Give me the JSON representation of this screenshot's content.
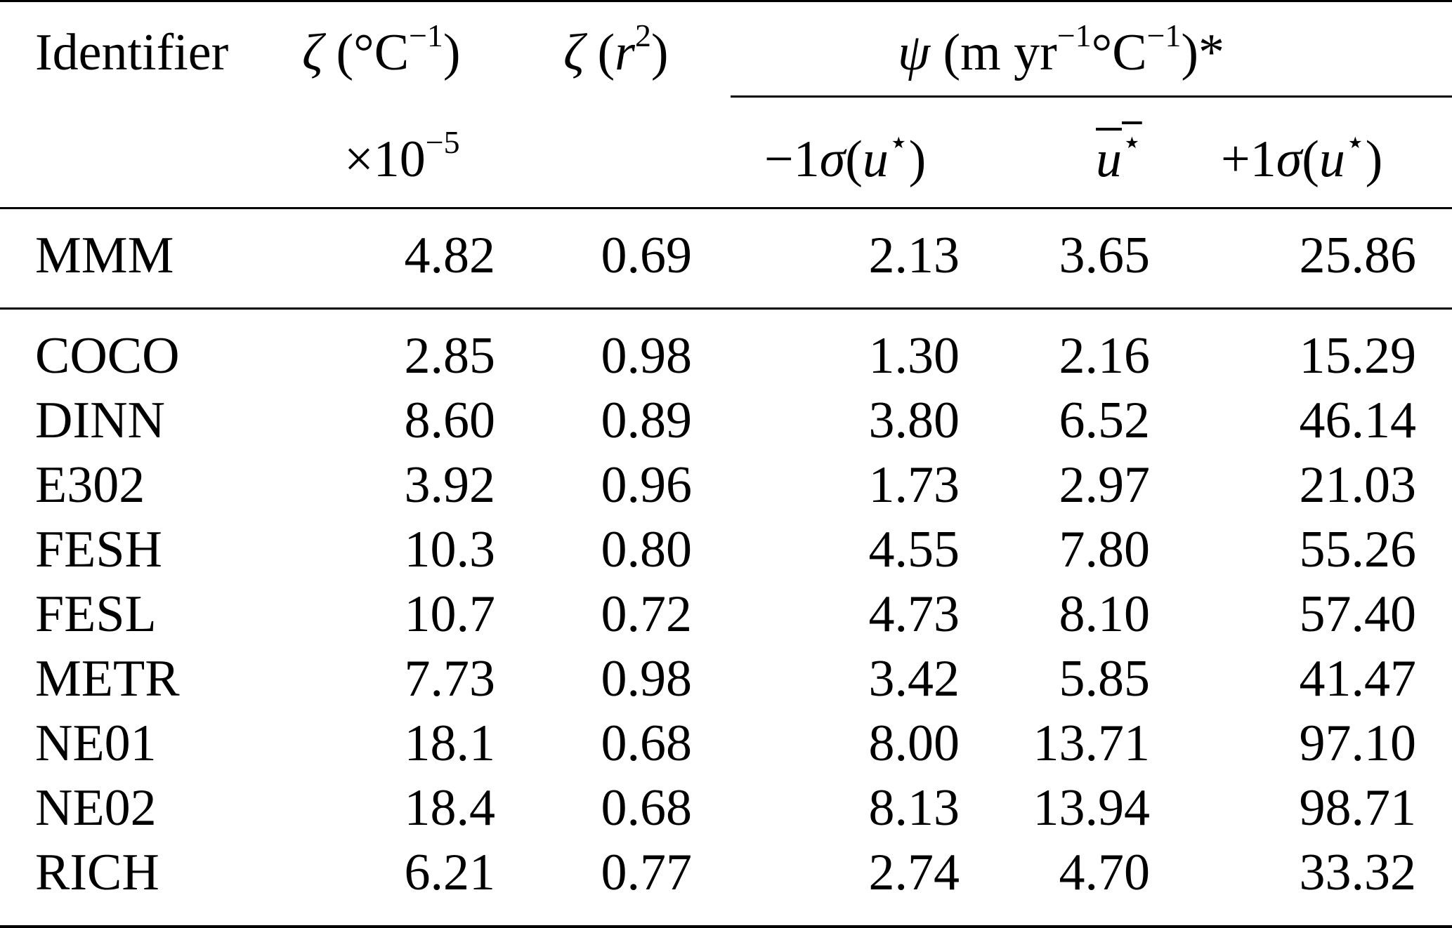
{
  "header": {
    "identifier": "Identifier",
    "zeta_unit_symbol": "ζ",
    "zeta_unit": "(°C",
    "zeta_unit_exp": "−1",
    "zeta_unit_close": ")",
    "zeta_scale": "×10",
    "zeta_scale_exp": "−5",
    "zeta_r_symbol": "ζ",
    "zeta_r_open": "(",
    "zeta_r_var": "r",
    "zeta_r_exp": "2",
    "zeta_r_close": ")",
    "psi_symbol": "ψ",
    "psi_unit_a": "(m yr",
    "psi_unit_exp1": "−1",
    "psi_unit_b": "°C",
    "psi_unit_exp2": "−1",
    "psi_unit_c": ")*",
    "sub_minus_prefix": "−1",
    "sub_sigma": "σ",
    "sub_open": "(",
    "sub_u": "u",
    "sub_star": "⋆",
    "sub_close": ")",
    "sub_plus_prefix": "+1"
  },
  "summary_row": {
    "id": "MMM",
    "zeta": "4.82",
    "r2": "0.69",
    "minus": "2.13",
    "mean": "3.65",
    "plus": "25.86"
  },
  "rows": [
    {
      "id": "COCO",
      "zeta": "2.85",
      "r2": "0.98",
      "minus": "1.30",
      "mean": "2.16",
      "plus": "15.29"
    },
    {
      "id": "DINN",
      "zeta": "8.60",
      "r2": "0.89",
      "minus": "3.80",
      "mean": "6.52",
      "plus": "46.14"
    },
    {
      "id": "E302",
      "zeta": "3.92",
      "r2": "0.96",
      "minus": "1.73",
      "mean": "2.97",
      "plus": "21.03"
    },
    {
      "id": "FESH",
      "zeta": "10.3",
      "r2": "0.80",
      "minus": "4.55",
      "mean": "7.80",
      "plus": "55.26"
    },
    {
      "id": "FESL",
      "zeta": "10.7",
      "r2": "0.72",
      "minus": "4.73",
      "mean": "8.10",
      "plus": "57.40"
    },
    {
      "id": "METR",
      "zeta": "7.73",
      "r2": "0.98",
      "minus": "3.42",
      "mean": "5.85",
      "plus": "41.47"
    },
    {
      "id": "NE01",
      "zeta": "18.1",
      "r2": "0.68",
      "minus": "8.00",
      "mean": "13.71",
      "plus": "97.10"
    },
    {
      "id": "NE02",
      "zeta": "18.4",
      "r2": "0.68",
      "minus": "8.13",
      "mean": "13.94",
      "plus": "98.71"
    },
    {
      "id": "RICH",
      "zeta": "6.21",
      "r2": "0.77",
      "minus": "2.74",
      "mean": "4.70",
      "plus": "33.32"
    }
  ]
}
